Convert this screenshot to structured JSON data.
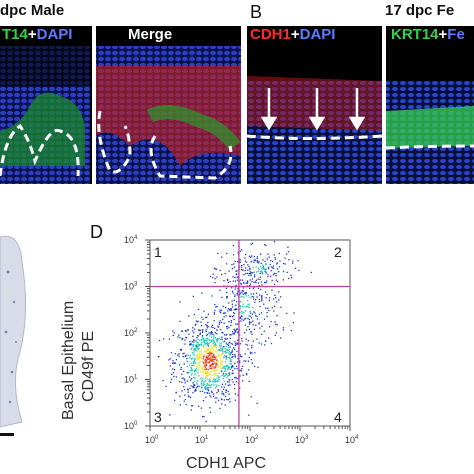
{
  "panel_a": {
    "title": "dpc Male",
    "channel_label_green": "T14",
    "channel_plus": "+",
    "channel_label_blue": "DAPI",
    "merge_label": "Merge"
  },
  "panel_b": {
    "letter": "B",
    "title": "17 dpc Fe",
    "channel1_red": "CDH1",
    "channel1_plus": "+",
    "channel1_blue": "DAPI",
    "channel2_green": "KRT14",
    "channel2_plus": "+",
    "channel2_blue": "Fe"
  },
  "panel_d": {
    "letter": "D",
    "ylabel_line1": "Basal Epithelium",
    "ylabel_line2": "CD49f PE",
    "xlabel": "CDH1 APC",
    "quadrants": [
      "1",
      "2",
      "3",
      "4"
    ],
    "colors": {
      "gate_line": "#c040a0",
      "axis": "#555555",
      "density_low": "#1f3bd1",
      "density_mid": "#19c7b0",
      "density_high": "#f2e21a",
      "density_peak": "#e83a1a"
    }
  },
  "chart_data": {
    "type": "scatter",
    "xlabel": "CDH1 APC",
    "ylabel": "Basal Epithelium CD49f PE",
    "x_scale": "log",
    "y_scale": "log",
    "xlim": [
      1,
      10000
    ],
    "ylim": [
      1,
      10000
    ],
    "x_ticks": [
      "10^0",
      "10^1",
      "10^2",
      "10^3",
      "10^4"
    ],
    "y_ticks": [
      "10^0",
      "10^1",
      "10^2",
      "10^3",
      "10^4"
    ],
    "gates": {
      "x": 60,
      "y": 1000
    },
    "clusters": [
      {
        "center": [
          15,
          25
        ],
        "spread_log": [
          0.35,
          0.45
        ],
        "count": 900,
        "density": "high"
      },
      {
        "center": [
          80,
          400
        ],
        "spread_log": [
          0.35,
          0.5
        ],
        "count": 350,
        "density": "low"
      },
      {
        "center": [
          150,
          2500
        ],
        "spread_log": [
          0.35,
          0.2
        ],
        "count": 150,
        "density": "low"
      }
    ]
  }
}
